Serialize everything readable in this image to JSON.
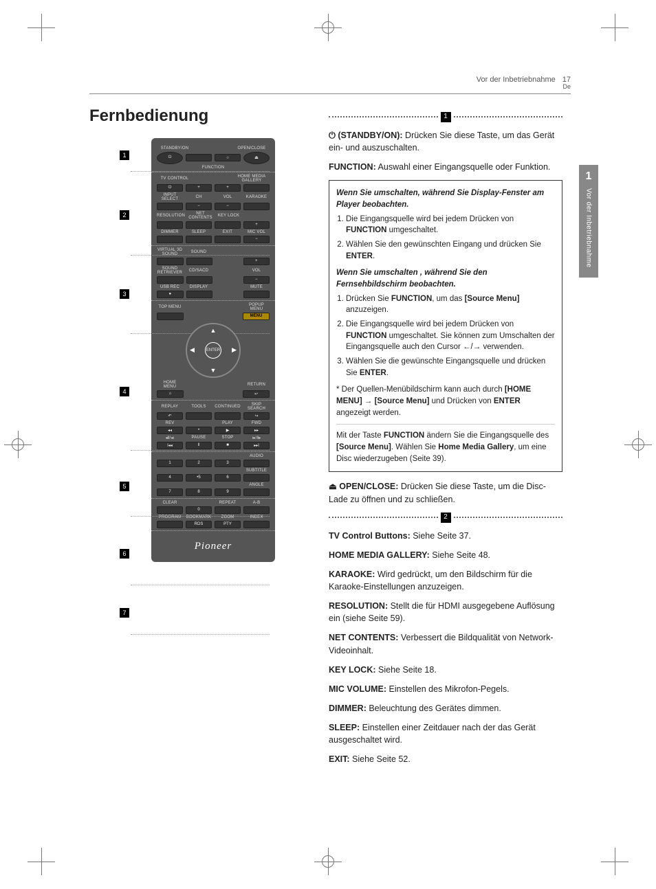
{
  "header": {
    "section": "Vor der Inbetriebnahme",
    "page": "17",
    "lang": "De"
  },
  "sidetab": {
    "chapter": "1",
    "label": "Vor der Inbetriebnahme"
  },
  "title": "Fernbedienung",
  "remote": {
    "callouts": [
      "1",
      "2",
      "3",
      "4",
      "5",
      "6",
      "7"
    ],
    "labels": {
      "standby": "STANDBY/ON",
      "openclose": "OPEN/CLOSE",
      "function": "FUNCTION",
      "tvcontrol": "TV CONTROL",
      "hmg": "HOME MEDIA GALLERY",
      "input": "INPUT SELECT",
      "ch": "CH",
      "vol": "VOL",
      "karaoke": "KARAOKE",
      "resolution": "RESOLUTION",
      "netcontents": "NET CONTENTS",
      "keylock": "KEY LOCK",
      "dimmer": "DIMMER",
      "sleep": "SLEEP",
      "exit": "EXIT",
      "micvol": "MIC VOL",
      "v3d": "VIRTUAL 3D SOUND",
      "sound": "SOUND",
      "sretr": "SOUND RETRIEVER",
      "cdsacd": "CD/SACD",
      "usbrec": "USB REC",
      "display": "DISPLAY",
      "mute": "MUTE",
      "topmenu": "TOP MENU",
      "popup": "POPUP MENU",
      "menu": "MENU",
      "home": "HOME MENU",
      "return": "RETURN",
      "enter": "ENTER",
      "replay": "REPLAY",
      "tools": "TOOLS",
      "continued": "CONTINUED",
      "skip": "SKIP SEARCH",
      "rev": "REV",
      "play": "PLAY",
      "fwd": "FWD",
      "pause": "PAUSE",
      "stop": "STOP",
      "audio": "AUDIO",
      "subtitle": "SUBTITLE",
      "angle": "ANGLE",
      "clear": "CLEAR",
      "repeat": "REPEAT",
      "ab": "A-B",
      "program": "PROGRAM",
      "bookmark": "BOOKMARK",
      "zoom": "ZOOM",
      "index": "INDEX",
      "rds": "RDS",
      "pty": "PTY"
    },
    "brand": "Pioneer"
  },
  "section1": {
    "num": "1",
    "standby": {
      "label": "⏻ (STANDBY/ON):",
      "text": "Drücken Sie diese Taste, um das Gerät ein- und auszuschalten."
    },
    "function": {
      "label": "FUNCTION:",
      "text": "Auswahl einer Eingangsquelle oder Funktion."
    },
    "box": {
      "h1": "Wenn Sie umschalten, während Sie Display-Fenster am Player beobachten.",
      "l1a": "Die Eingangsquelle wird bei jedem Drücken von ",
      "l1b": "FUNCTION",
      "l1c": " umgeschaltet.",
      "l2a": "Wählen Sie den gewünschten Eingang und drücken Sie ",
      "l2b": "ENTER",
      "l2c": ".",
      "h2": "Wenn Sie umschalten , während Sie den Fernsehbildschirm beobachten.",
      "m1a": "Drücken Sie ",
      "m1b": "FUNCTION",
      "m1c": ", um das ",
      "m1d": "[Source Menu]",
      "m1e": " anzuzeigen.",
      "m2a": "Die Eingangsquelle wird bei jedem Drücken von ",
      "m2b": "FUNCTION",
      "m2c": " umgeschaltet. Sie können zum Umschalten der Eingangsquelle auch den Cursor ←/→ verwenden.",
      "m3a": "Wählen Sie die gewünschte Eingangsquelle und drücken Sie ",
      "m3b": "ENTER",
      "m3c": ".",
      "star_a": "Der Quellen-Menübildschirm kann auch durch ",
      "star_b": "[HOME MENU]",
      "star_c": " → ",
      "star_d": "[Source Menu]",
      "star_e": " und Drücken von ",
      "star_f": "ENTER",
      "star_g": " angezeigt werden.",
      "foot_a": "Mit der Taste ",
      "foot_b": "FUNCTION",
      "foot_c": " ändern Sie die Eingangsquelle des ",
      "foot_d": "[Source Menu]",
      "foot_e": ". Wählen Sie ",
      "foot_f": "Home Media Gallery",
      "foot_g": ", um eine Disc wiederzugeben (Seite 39)."
    },
    "openclose": {
      "label": "⏏ OPEN/CLOSE:",
      "text": "Drücken Sie diese Taste, um die Disc-Lade zu öffnen und zu schließen."
    }
  },
  "section2": {
    "num": "2",
    "items": [
      {
        "label": "TV Control Buttons:",
        "text": "Siehe Seite 37."
      },
      {
        "label": "HOME MEDIA GALLERY:",
        "text": "Siehe Seite 48."
      },
      {
        "label": "KARAOKE:",
        "text": "Wird gedrückt, um den Bildschirm für die Karaoke-Einstellungen anzuzeigen."
      },
      {
        "label": "RESOLUTION:",
        "text": "Stellt die für HDMI ausgegebene Auflösung ein (siehe Seite 59)."
      },
      {
        "label": "NET CONTENTS:",
        "text": " Verbessert die Bildqualität von Network-Videoinhalt."
      },
      {
        "label": "KEY LOCK:",
        "text": "Siehe Seite 18."
      },
      {
        "label": "MIC VOLUME:",
        "text": "Einstellen des Mikrofon-Pegels."
      },
      {
        "label": "DIMMER:",
        "text": "Beleuchtung des Gerätes dimmen."
      },
      {
        "label": "SLEEP:",
        "text": "Einstellen einer Zeitdauer nach der das Gerät ausgeschaltet wird."
      },
      {
        "label": "EXIT:",
        "text": "Siehe Seite 52."
      }
    ]
  },
  "colors": {
    "page_bg": "#ffffff",
    "text": "#222222",
    "remote_bg": "#555555",
    "btn": "#333333",
    "sidetab": "#888888"
  }
}
